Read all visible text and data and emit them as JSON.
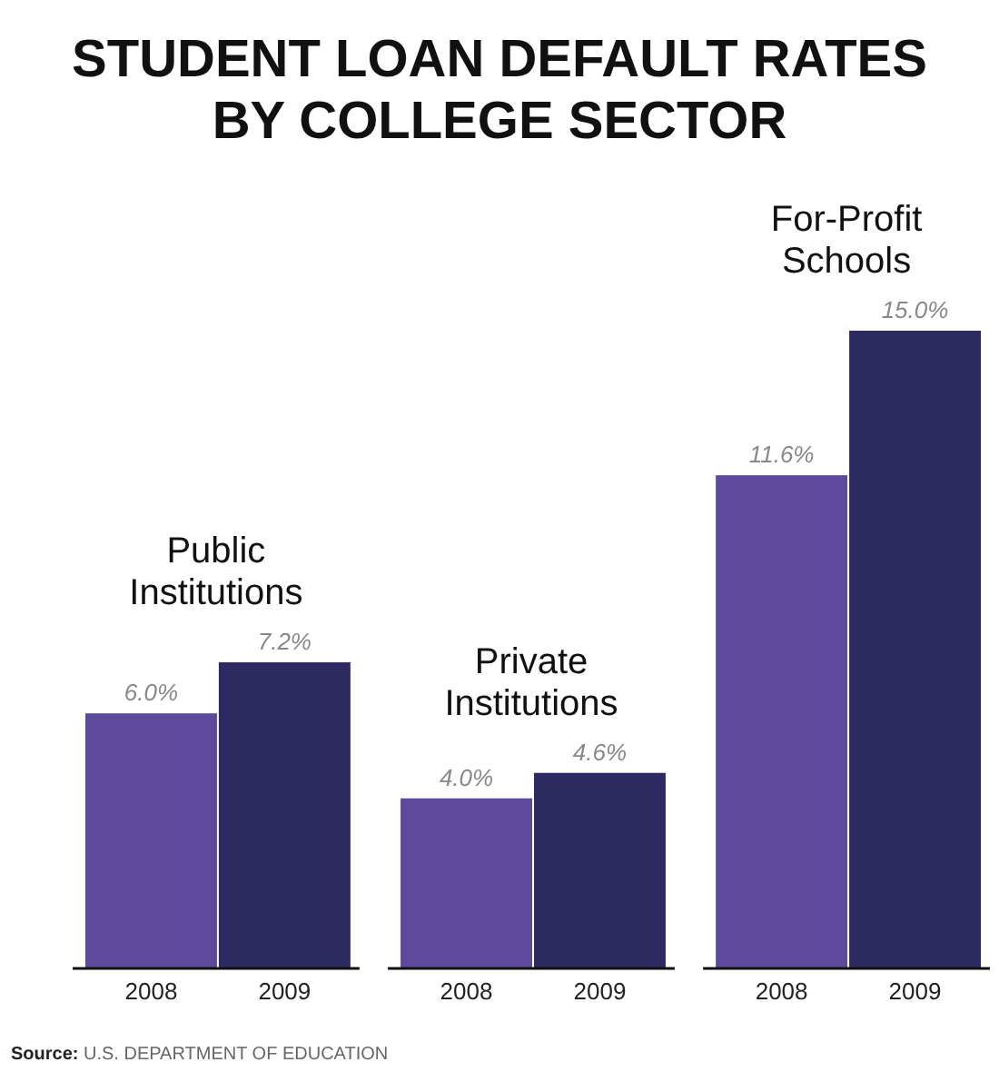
{
  "chart_data": {
    "type": "bar",
    "title": "STUDENT LOAN DEFAULT RATES BY COLLEGE SECTOR",
    "categories": [
      "Public Institutions",
      "Private Institutions",
      "For-Profit Schools"
    ],
    "series": [
      {
        "name": "2008",
        "color": "#5e4a9c",
        "values": [
          6.0,
          4.0,
          11.6
        ],
        "value_labels": [
          "6.0%",
          "4.0%",
          "11.6%"
        ]
      },
      {
        "name": "2009",
        "color": "#2d2a62",
        "values": [
          7.2,
          4.6,
          15.0
        ],
        "value_labels": [
          "7.2%",
          "4.6%",
          "15.0%"
        ]
      }
    ],
    "annotations": [
      "Source: U.S. DEPARTMENT OF EDUCATION"
    ]
  }
}
